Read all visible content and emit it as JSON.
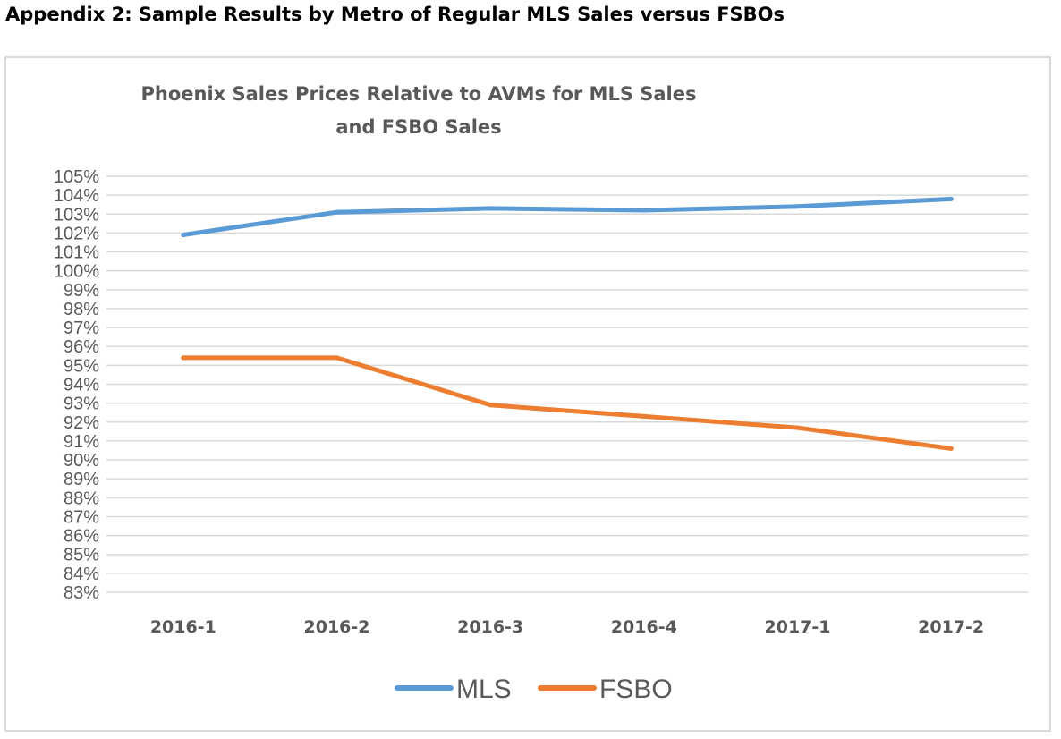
{
  "page": {
    "heading": "Appendix 2: Sample Results by Metro of Regular MLS Sales versus FSBOs"
  },
  "chart_data": {
    "type": "line",
    "title_lines": [
      "Phoenix Sales Prices Relative to AVMs for MLS Sales",
      "and FSBO Sales"
    ],
    "categories": [
      "2016-1",
      "2016-2",
      "2016-3",
      "2016-4",
      "2017-1",
      "2017-2"
    ],
    "y_ticks": [
      "83%",
      "84%",
      "85%",
      "86%",
      "87%",
      "88%",
      "89%",
      "90%",
      "91%",
      "92%",
      "93%",
      "94%",
      "95%",
      "96%",
      "97%",
      "98%",
      "99%",
      "100%",
      "101%",
      "102%",
      "103%",
      "104%",
      "105%"
    ],
    "ylim": [
      83,
      105
    ],
    "grid": true,
    "legend_position": "bottom",
    "series": [
      {
        "name": "MLS",
        "color": "#5b9bd5",
        "values": [
          101.9,
          103.1,
          103.3,
          103.2,
          103.4,
          103.8
        ]
      },
      {
        "name": "FSBO",
        "color": "#ed7d31",
        "values": [
          95.4,
          95.4,
          92.9,
          92.3,
          91.7,
          90.6
        ]
      }
    ]
  }
}
